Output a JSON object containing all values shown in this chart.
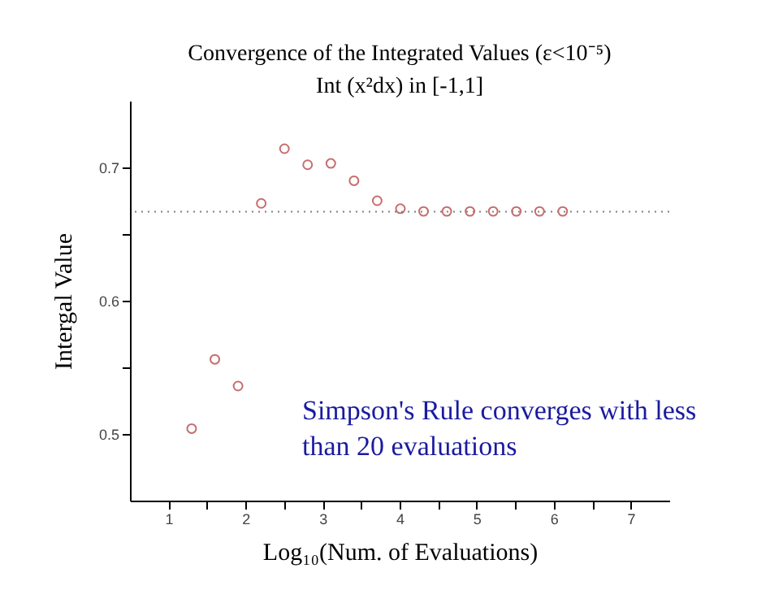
{
  "chart_data": {
    "type": "scatter",
    "title": "Convergence of the Integrated Values (ε<10⁻⁵)",
    "subtitle": "Int (x²dx) in [-1,1]",
    "xlabel": "Log₁₀(Num. of Evaluations)",
    "ylabel": "Intergal Value",
    "x": [
      1.301,
      1.602,
      1.903,
      2.204,
      2.505,
      2.806,
      3.107,
      3.408,
      3.709,
      4.01,
      4.311,
      4.612,
      4.913,
      5.214,
      5.515,
      5.816,
      6.117
    ],
    "series": [
      {
        "color": "#b03030",
        "values": [
          0.504,
          0.556,
          0.536,
          0.673,
          0.714,
          0.702,
          0.703,
          0.69,
          0.675,
          0.669,
          0.667,
          0.667,
          0.667,
          0.667,
          0.667,
          0.667,
          0.667
        ]
      }
    ],
    "marker": "circle",
    "xlim": [
      0.5,
      7.5
    ],
    "xticks": [
      1,
      {
        "value": 1.5,
        "label": null
      },
      2,
      {
        "value": 2.5,
        "label": null
      },
      3,
      {
        "value": 3.5,
        "label": null
      },
      4,
      {
        "value": 4.5,
        "label": null
      },
      5,
      {
        "value": 5.5,
        "label": null
      },
      6,
      {
        "value": 6.5,
        "label": null
      },
      7
    ],
    "ylim": [
      0.45,
      0.75
    ],
    "yticks": [
      0.5,
      {
        "value": 0.55,
        "label": null
      },
      0.6,
      {
        "value": 0.65,
        "label": null
      },
      0.7
    ],
    "ref_lines": [
      {
        "axis": "y",
        "value": 0.6667,
        "color": "#808080",
        "line_style": "dotted"
      }
    ],
    "annotations": [
      "Simpson's Rule converges with less than 20 evaluations"
    ],
    "grid": false
  }
}
